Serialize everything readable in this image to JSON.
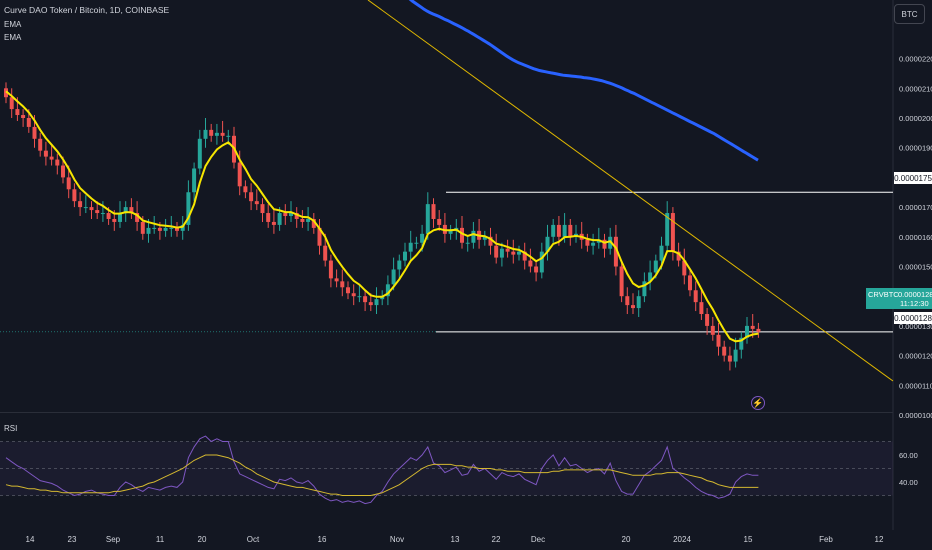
{
  "header": {
    "title": "Curve DAO Token / Bitcoin, 1D, COINBASE",
    "indicators": [
      "EMA",
      "EMA"
    ],
    "currency_button": "BTC"
  },
  "price_tag": {
    "symbol": "CRVBTC",
    "price": "0.0000128",
    "countdown": "11:12:30"
  },
  "level_labels": [
    "0.0000175",
    "0.0000128"
  ],
  "rsi": {
    "label": "RSI",
    "ticks": [
      "60.00",
      "40.00"
    ]
  },
  "colors": {
    "background": "#131722",
    "up": "#26a69a",
    "down": "#ef5350",
    "ema_fast": "#f7e600",
    "ema_slow": "#2962ff",
    "trendline": "#e0b800",
    "rsi_line": "#7e57c2",
    "rsi_ma": "#d4b830"
  },
  "chart_data": {
    "type": "candlestick",
    "y_axis_ticks": [
      "0.0000220",
      "0.0000210",
      "0.0000200",
      "0.0000190",
      "0.0000180",
      "0.0000170",
      "0.0000160",
      "0.0000150",
      "0.0000140",
      "0.0000130",
      "0.0000120",
      "0.0000110",
      "0.0000100"
    ],
    "ylim": [
      9.8e-06,
      2.32e-05
    ],
    "x_axis_ticks": [
      "14",
      "23",
      "Sep",
      "11",
      "20",
      "Oct",
      "16",
      "Nov",
      "13",
      "22",
      "Dec",
      "20",
      "2024",
      "15",
      "Feb",
      "12"
    ],
    "close_series": [
      207,
      203,
      201,
      200,
      197,
      193,
      189,
      187,
      186,
      184,
      180,
      176,
      172,
      170,
      170,
      169,
      168,
      168,
      166,
      165,
      168,
      170,
      168,
      165,
      161,
      163,
      163,
      162,
      163,
      163,
      162,
      164,
      175,
      183,
      193,
      196,
      194,
      195,
      194,
      194,
      185,
      177,
      175,
      172,
      171,
      168,
      165,
      164,
      168,
      167,
      168,
      166,
      165,
      166,
      163,
      157,
      152,
      146,
      145,
      143,
      141,
      140,
      140,
      138,
      137,
      139,
      140,
      144,
      149,
      152,
      155,
      158,
      158,
      161,
      171,
      166,
      164,
      161,
      162,
      163,
      158,
      158,
      162,
      159,
      160,
      157,
      153,
      156,
      155,
      154,
      155,
      152,
      150,
      148,
      155,
      160,
      164,
      160,
      164,
      160,
      161,
      159,
      157,
      158,
      159,
      156,
      160,
      150,
      140,
      137,
      136,
      140,
      145,
      148,
      152,
      157,
      168,
      155,
      152,
      147,
      142,
      138,
      134,
      130,
      127,
      123,
      120,
      118,
      122,
      126,
      130,
      129,
      128
    ],
    "ema_fast_close": [
      209.0,
      207.4,
      205.6,
      203.9,
      201.9,
      199.2,
      196.0,
      193.2,
      191.0,
      188.8,
      186.1,
      182.9,
      179.3,
      176.4,
      174.6,
      172.9,
      171.4,
      170.4,
      169.0,
      167.8,
      167.8,
      168.3,
      168.2,
      167.3,
      165.5,
      164.9,
      164.4,
      163.9,
      163.7,
      163.5,
      163.1,
      163.4,
      166.4,
      170.9,
      178.2,
      183.8,
      186.9,
      189.4,
      190.8,
      191.8,
      189.9,
      186.0,
      182.9,
      179.4,
      177.2,
      174.4,
      171.6,
      169.3,
      168.9,
      168.3,
      168.3,
      167.5,
      166.7,
      166.6,
      165.4,
      162.8,
      160.0,
      155.6,
      152.6,
      149.9,
      147.4,
      145.2,
      143.9,
      142.0,
      140.3,
      139.8,
      139.8,
      140.9,
      143.2,
      145.7,
      148.7,
      151.9,
      153.8,
      156.2,
      160.9,
      162.2,
      162.7,
      162.2,
      162.2,
      162.4,
      161.1,
      160.3,
      160.9,
      160.4,
      160.2,
      159.3,
      157.7,
      157.2,
      156.6,
      155.9,
      155.6,
      154.6,
      153.3,
      151.8,
      152.8,
      155.0,
      157.6,
      158.3,
      159.9,
      160.0,
      160.3,
      160.0,
      159.3,
      158.9,
      158.9,
      158.0,
      158.5,
      156.3,
      151.6,
      147.5,
      144.3,
      143.1,
      143.6,
      144.8,
      147.0,
      150.2,
      155.2,
      155.2,
      154.4,
      152.1,
      149.1,
      146.0,
      142.4,
      138.7,
      135.6,
      131.9,
      128.6,
      125.7,
      124.8,
      125.1,
      126.4,
      127.1,
      127.4
    ],
    "ema_slow_close": [
      250.0,
      249.3,
      248.6,
      247.8,
      247.1,
      246.4,
      245.8,
      245.2,
      244.5,
      243.9,
      243.2,
      242.5,
      241.7,
      241.0,
      240.2,
      239.4,
      238.7,
      238.0,
      237.3,
      236.6,
      236.0,
      235.5,
      235.0,
      234.6,
      234.2,
      233.7,
      233.2,
      232.8,
      232.3,
      231.8,
      231.3,
      230.8,
      230.3,
      229.7,
      229.2,
      228.6,
      228.0,
      227.4,
      226.8,
      226.2,
      225.6,
      225.0,
      224.3,
      223.6,
      222.9,
      222.2,
      221.5,
      220.8,
      220.2,
      219.6,
      219.1,
      218.6,
      218.2,
      217.8,
      217.4,
      217.0,
      216.6,
      216.3,
      216.0,
      215.8,
      215.6,
      215.4,
      215.2,
      215.0,
      214.8,
      214.6,
      214.4,
      214.3,
      214.2,
      214.1,
      214.0,
      213.9,
      213.8,
      213.6,
      213.5,
      213.4,
      213.2,
      213.0,
      212.8,
      212.6,
      212.3,
      212.0,
      211.7,
      211.3,
      210.9,
      210.5,
      210.1,
      209.6,
      209.2,
      208.7,
      208.3,
      207.8,
      207.3,
      206.8,
      206.3,
      205.8,
      205.3,
      204.8,
      204.3,
      203.8,
      203.3,
      202.8,
      202.3,
      201.8,
      201.3,
      200.8,
      200.3,
      199.8,
      199.3,
      198.8,
      198.3,
      197.8,
      197.3,
      196.8,
      196.3,
      195.8,
      195.3,
      194.8,
      194.2,
      193.6,
      193.0,
      192.4,
      191.8,
      191.2,
      190.6,
      190.0,
      189.4,
      188.8,
      188.2,
      187.6,
      187.0,
      186.4,
      185.8
    ],
    "price_scale_note": "close_series values are in units of 1e-7 BTC",
    "horizontal_levels": [
      1.75e-05,
      1.28e-05
    ],
    "rsi_series": [
      58,
      55,
      52,
      50,
      47,
      44,
      41,
      40,
      39,
      37,
      34,
      32,
      30,
      31,
      33,
      34,
      32,
      31,
      30,
      30,
      36,
      40,
      38,
      35,
      33,
      36,
      35,
      34,
      36,
      37,
      36,
      40,
      58,
      66,
      72,
      74,
      70,
      72,
      70,
      70,
      55,
      46,
      44,
      42,
      40,
      38,
      36,
      35,
      42,
      41,
      43,
      40,
      39,
      41,
      37,
      31,
      28,
      26,
      27,
      25,
      26,
      25,
      26,
      24,
      25,
      30,
      33,
      40,
      46,
      50,
      54,
      58,
      56,
      60,
      66,
      54,
      52,
      47,
      49,
      51,
      45,
      46,
      53,
      48,
      50,
      46,
      42,
      47,
      45,
      44,
      46,
      42,
      40,
      38,
      50,
      56,
      60,
      52,
      58,
      52,
      53,
      50,
      47,
      49,
      50,
      46,
      54,
      41,
      33,
      31,
      31,
      38,
      45,
      48,
      52,
      56,
      66,
      50,
      47,
      43,
      40,
      36,
      33,
      31,
      30,
      28,
      29,
      31,
      40,
      44,
      46,
      45,
      45
    ],
    "rsi_ma_series": [
      38,
      37,
      37,
      36,
      35,
      35,
      34,
      34,
      33,
      33,
      32,
      32,
      32,
      32,
      32,
      32,
      32,
      32,
      32,
      33,
      33,
      34,
      35,
      36,
      37,
      39,
      40,
      42,
      44,
      46,
      48,
      50,
      53,
      56,
      58,
      60,
      60,
      60,
      59,
      58,
      56,
      54,
      51,
      49,
      46,
      44,
      42,
      40,
      39,
      38,
      37,
      36,
      36,
      35,
      34,
      33,
      32,
      31,
      31,
      30,
      30,
      30,
      30,
      30,
      30,
      31,
      32,
      34,
      36,
      38,
      41,
      44,
      47,
      50,
      52,
      53,
      53,
      53,
      53,
      52,
      52,
      51,
      51,
      50,
      50,
      50,
      49,
      49,
      48,
      48,
      48,
      47,
      47,
      47,
      47,
      47,
      48,
      48,
      49,
      49,
      49,
      49,
      49,
      49,
      49,
      49,
      49,
      48,
      47,
      46,
      45,
      45,
      45,
      45,
      46,
      46,
      47,
      47,
      47,
      46,
      45,
      44,
      43,
      41,
      40,
      38,
      37,
      36,
      36,
      36,
      36,
      36,
      36
    ],
    "rsi_ylim": [
      20,
      80
    ]
  }
}
